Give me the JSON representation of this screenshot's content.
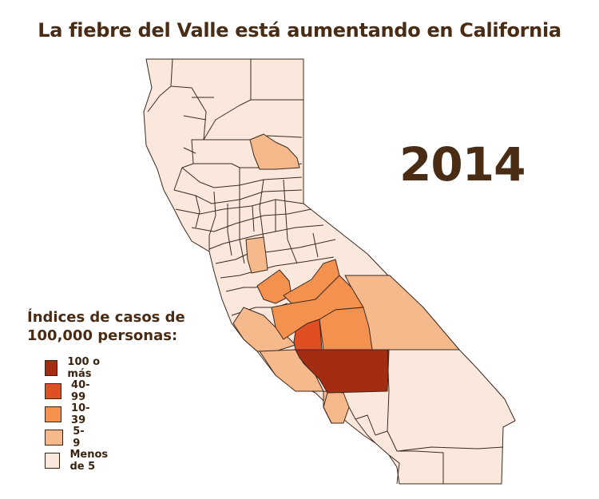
{
  "title": "La fiebre del Valle está aumentando en California",
  "year": "2014",
  "legend": {
    "title_line1": "Índices de casos de",
    "title_line2": "100,000 personas:",
    "items": [
      {
        "label": "100 o más",
        "color": "#a32c12"
      },
      {
        "label": "40-99",
        "color": "#e04f24"
      },
      {
        "label": "10-39",
        "color": "#f5914f"
      },
      {
        "label": "5-9",
        "color": "#f5b98c"
      },
      {
        "label": "Menos de 5",
        "color": "#fbe8dc"
      }
    ]
  }
}
